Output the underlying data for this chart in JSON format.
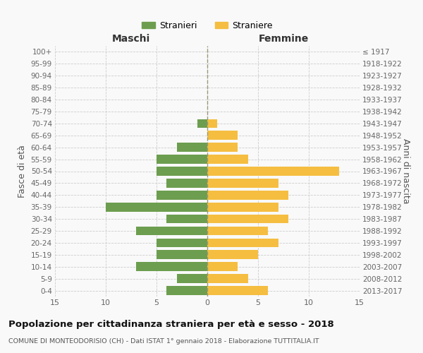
{
  "age_groups": [
    "100+",
    "95-99",
    "90-94",
    "85-89",
    "80-84",
    "75-79",
    "70-74",
    "65-69",
    "60-64",
    "55-59",
    "50-54",
    "45-49",
    "40-44",
    "35-39",
    "30-34",
    "25-29",
    "20-24",
    "15-19",
    "10-14",
    "5-9",
    "0-4"
  ],
  "birth_years": [
    "≤ 1917",
    "1918-1922",
    "1923-1927",
    "1928-1932",
    "1933-1937",
    "1938-1942",
    "1943-1947",
    "1948-1952",
    "1953-1957",
    "1958-1962",
    "1963-1967",
    "1968-1972",
    "1973-1977",
    "1978-1982",
    "1983-1987",
    "1988-1992",
    "1993-1997",
    "1998-2002",
    "2003-2007",
    "2008-2012",
    "2013-2017"
  ],
  "males": [
    0,
    0,
    0,
    0,
    0,
    0,
    1,
    0,
    3,
    5,
    5,
    4,
    5,
    10,
    4,
    7,
    5,
    5,
    7,
    3,
    4
  ],
  "females": [
    0,
    0,
    0,
    0,
    0,
    0,
    1,
    3,
    3,
    4,
    13,
    7,
    8,
    7,
    8,
    6,
    7,
    5,
    3,
    4,
    6
  ],
  "male_color": "#6d9e4f",
  "female_color": "#f5be41",
  "background_color": "#f9f9f9",
  "grid_color": "#cccccc",
  "title": "Popolazione per cittadinanza straniera per età e sesso - 2018",
  "subtitle": "COMUNE DI MONTEODORISIO (CH) - Dati ISTAT 1° gennaio 2018 - Elaborazione TUTTITALIA.IT",
  "xlabel_left": "Maschi",
  "xlabel_right": "Femmine",
  "ylabel_left": "Fasce di età",
  "ylabel_right": "Anni di nascita",
  "legend_male": "Stranieri",
  "legend_female": "Straniere",
  "xlim": 15,
  "bar_height": 0.75
}
